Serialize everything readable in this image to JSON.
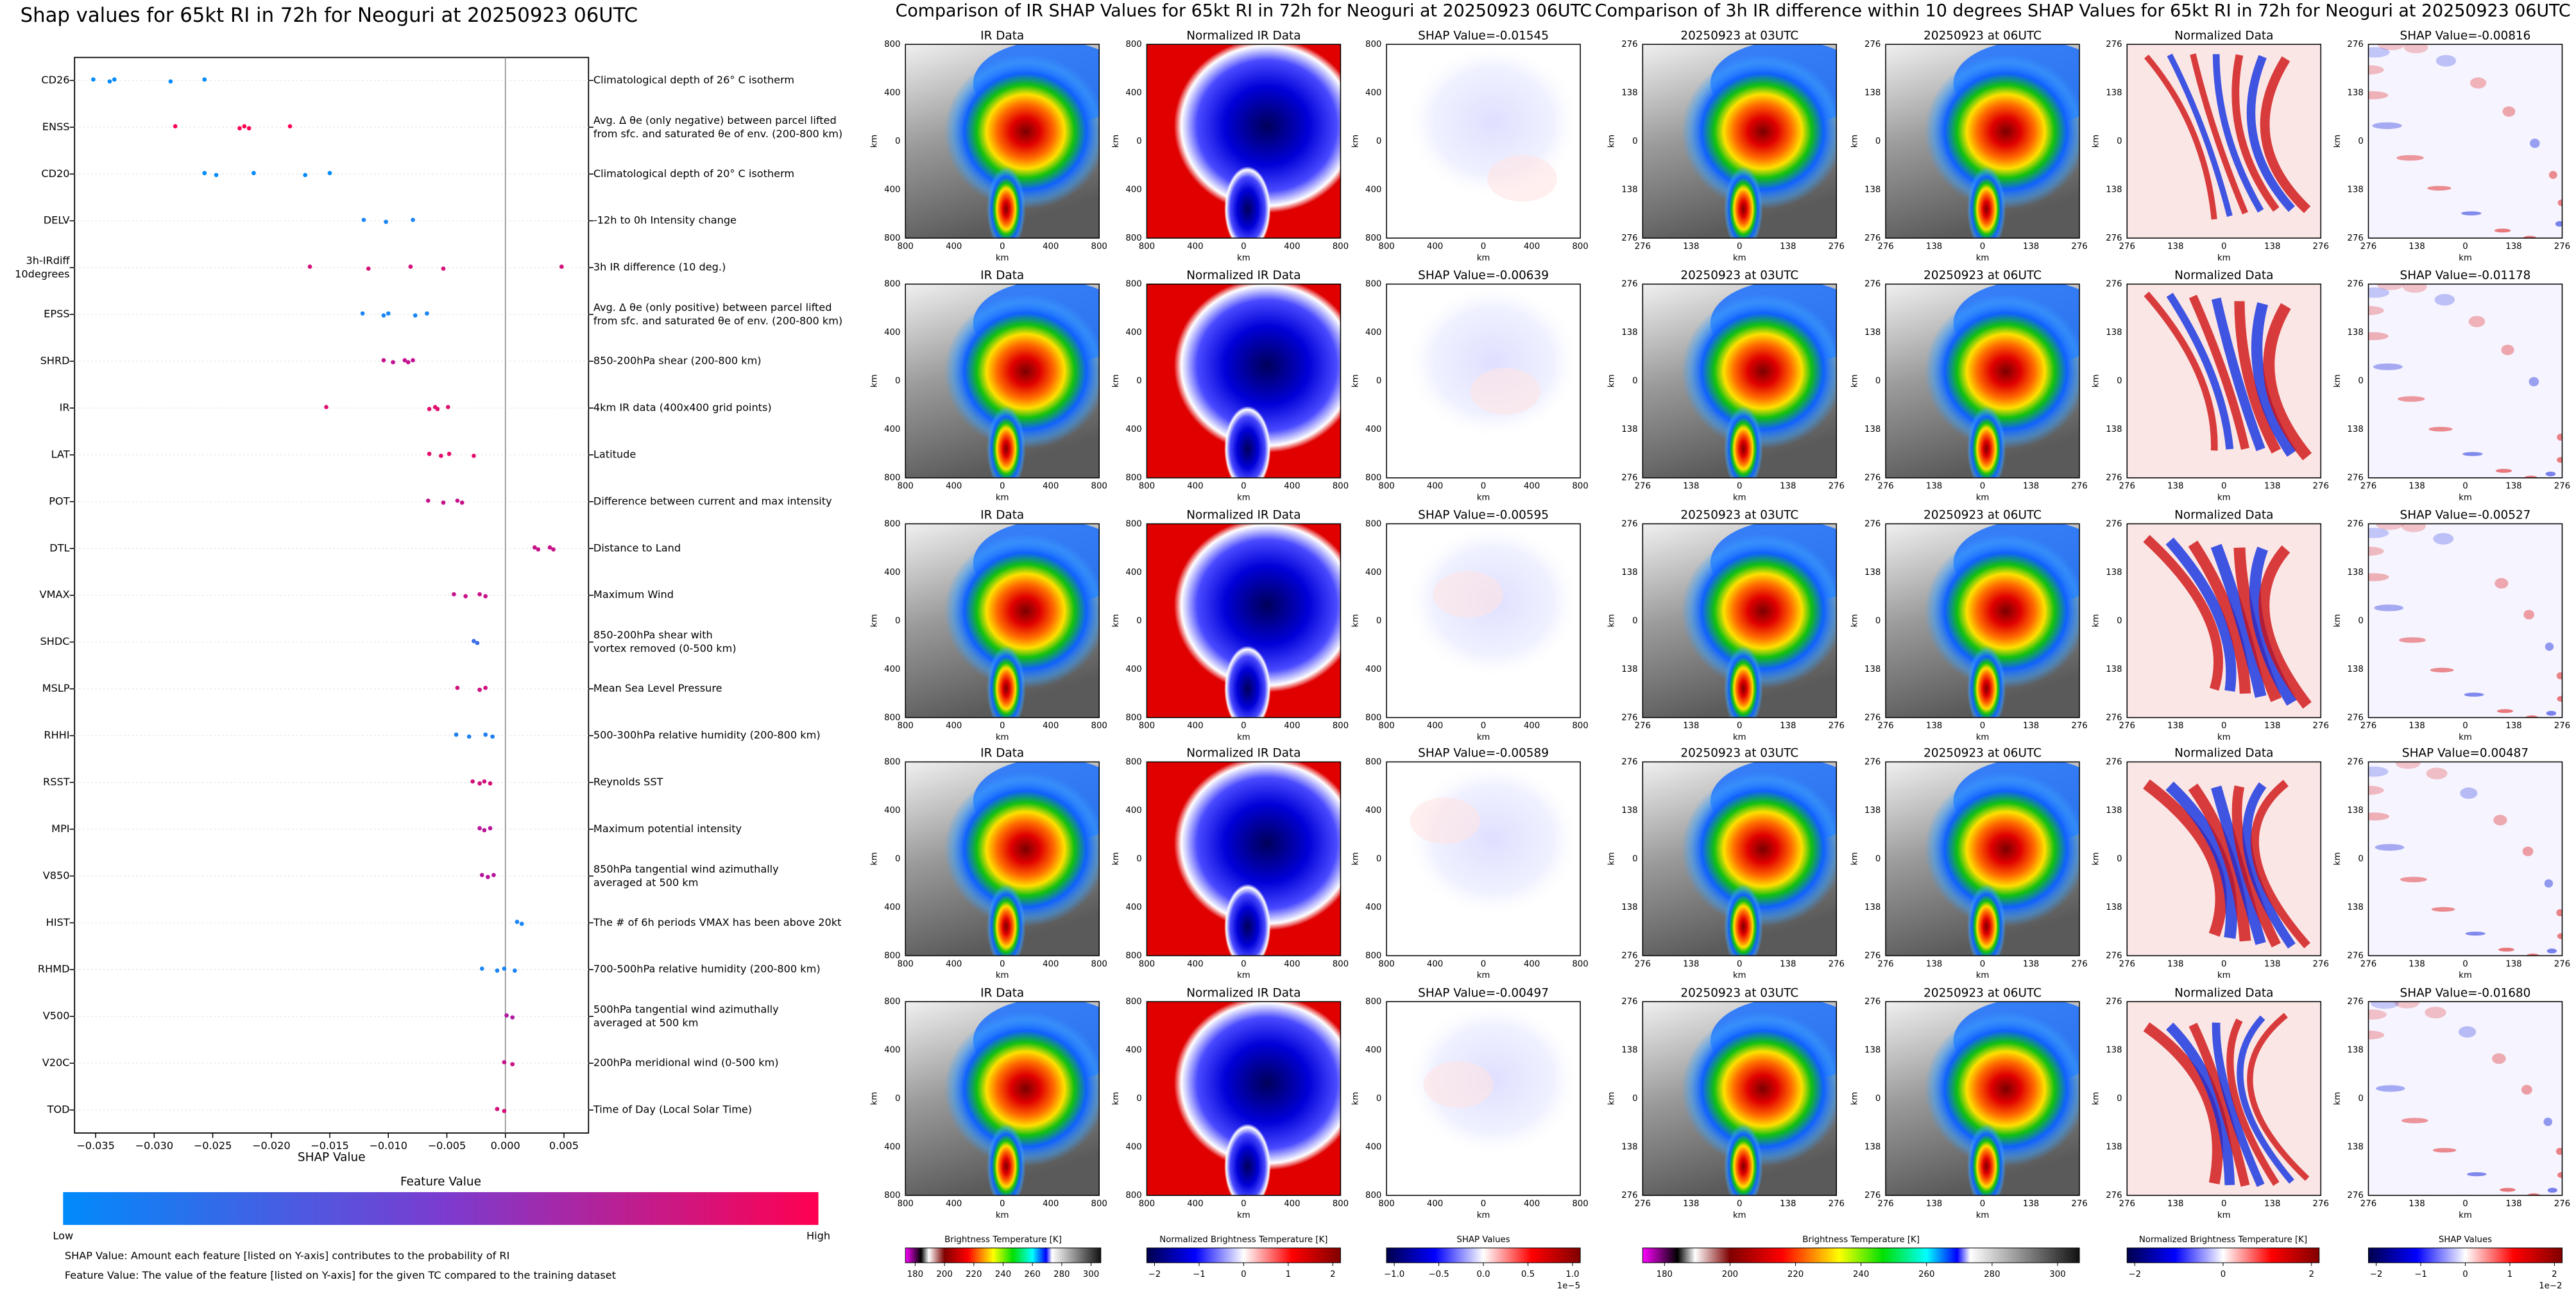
{
  "chart_data": [
    {
      "type": "scatter",
      "title": "Shap values for 65kt RI in 72h for Neoguri at 20250923 06UTC",
      "x_label": "SHAP Value",
      "xlim": [
        -0.0368,
        0.0071
      ],
      "xticks": [
        {
          "value": -0.035,
          "label": "−0.035"
        },
        {
          "value": -0.03,
          "label": "−0.030"
        },
        {
          "value": -0.025,
          "label": "−0.025"
        },
        {
          "value": -0.02,
          "label": "−0.020"
        },
        {
          "value": -0.015,
          "label": "−0.015"
        },
        {
          "value": -0.01,
          "label": "−0.010"
        },
        {
          "value": -0.005,
          "label": "−0.005"
        },
        {
          "value": 0,
          "label": "0.000"
        },
        {
          "value": 0.005,
          "label": "0.005"
        }
      ],
      "categories": [
        "CD26",
        "ENSS",
        "CD20",
        "DELV",
        "3h-IRdiff\n10degrees",
        "EPSS",
        "SHRD",
        "IR",
        "LAT",
        "POT",
        "DTL",
        "VMAX",
        "SHDC",
        "MSLP",
        "RHHI",
        "RSST",
        "MPI",
        "V850",
        "HIST",
        "RHMD",
        "V500",
        "V20C",
        "TOD"
      ],
      "descriptions": [
        "Climatological depth of 26° C isotherm",
        "Avg. Δ θe (only negative) between parcel lifted\nfrom sfc. and saturated θe of env. (200-800 km)",
        "Climatological depth of 20° C isotherm",
        "-12h to 0h Intensity change",
        "3h IR difference (10 deg.)",
        "Avg. Δ θe (only positive) between parcel lifted\nfrom sfc. and saturated θe of env. (200-800 km)",
        "850-200hPa shear (200-800 km)",
        "4km IR data (400x400 grid points)",
        "Latitude",
        "Difference between current and max intensity",
        "Distance to Land",
        "Maximum Wind",
        "850-200hPa shear with\nvortex removed (0-500 km)",
        "Mean Sea Level Pressure",
        "500-300hPa relative humidity (200-800 km)",
        "Reynolds SST",
        "Maximum potential intensity",
        "850hPa tangential wind azimuthally\naveraged at 500 km",
        "The # of 6h periods VMAX has been above 20kt",
        "700-500hPa relative humidity (200-800 km)",
        "500hPa tangential wind azimuthally\naveraged at 500 km",
        "200hPa meridional wind (0-500 km)",
        "Time of Day (Local Solar Time)"
      ],
      "points": [
        {
          "color": "#008bfb",
          "values": [
            -0.0352,
            -0.0338,
            -0.0334,
            -0.0286,
            -0.0257
          ]
        },
        {
          "color": "#ff0051",
          "values": [
            -0.0282,
            -0.0227,
            -0.0223,
            -0.0219,
            -0.0184
          ]
        },
        {
          "color": "#008bfb",
          "values": [
            -0.0257,
            -0.0247,
            -0.0215,
            -0.0171,
            -0.015
          ]
        },
        {
          "color": "#1a86f5",
          "values": [
            -0.0121,
            -0.0102,
            -0.0079
          ]
        },
        {
          "color": "#d6107a",
          "values": [
            -0.0167,
            -0.0117,
            -0.0081,
            -0.0053,
            0.0048
          ]
        },
        {
          "color": "#1a86f5",
          "values": [
            -0.0122,
            -0.0104,
            -0.01,
            -0.0077,
            -0.0067
          ]
        },
        {
          "color": "#c4118f",
          "values": [
            -0.0104,
            -0.0096,
            -0.0086,
            -0.0083,
            -0.0079
          ]
        },
        {
          "color": "#e0106e",
          "values": [
            -0.0153,
            -0.0065,
            -0.006,
            -0.0058,
            -0.0049
          ]
        },
        {
          "color": "#e40b6a",
          "values": [
            -0.0065,
            -0.0055,
            -0.0048,
            -0.0027
          ]
        },
        {
          "color": "#c6128a",
          "values": [
            -0.0066,
            -0.0053,
            -0.0041,
            -0.0037
          ]
        },
        {
          "color": "#c8128a",
          "values": [
            0.0025,
            0.0028,
            0.0038,
            0.0041
          ]
        },
        {
          "color": "#c8128a",
          "values": [
            -0.0044,
            -0.0034,
            -0.0022,
            -0.0017
          ]
        },
        {
          "color": "#3a6ee8",
          "values": [
            -0.0027,
            -0.0024
          ]
        },
        {
          "color": "#d00f80",
          "values": [
            -0.0041,
            -0.0022,
            -0.0017
          ]
        },
        {
          "color": "#1e7ff0",
          "values": [
            -0.0042,
            -0.0031,
            -0.0017,
            -0.0011
          ]
        },
        {
          "color": "#d2107c",
          "values": [
            -0.0028,
            -0.0022,
            -0.0018,
            -0.0013
          ]
        },
        {
          "color": "#b8159a",
          "values": [
            -0.0022,
            -0.0018,
            -0.0013
          ]
        },
        {
          "color": "#b8159a",
          "values": [
            -0.002,
            -0.0015,
            -0.001
          ]
        },
        {
          "color": "#1a86f5",
          "values": [
            0.001,
            0.0014
          ]
        },
        {
          "color": "#1a86f5",
          "values": [
            -0.002,
            -0.0007,
            -0.0001,
            0.0008
          ]
        },
        {
          "color": "#b01aa0",
          "values": [
            0.0001,
            0.0006
          ]
        },
        {
          "color": "#c8128a",
          "values": [
            -0.0001,
            0.0006
          ]
        },
        {
          "color": "#d6107a",
          "values": [
            -0.0007,
            -0.0001
          ]
        }
      ],
      "colorbar": {
        "label": "Feature Value",
        "low": "Low",
        "high": "High",
        "colors": [
          "#008bfb",
          "#7a3cd0",
          "#ff0051"
        ]
      },
      "notes": [
        "SHAP Value: Amount each feature [listed on Y-axis] contributes to the probability of RI",
        "Feature Value: The value of the feature [listed on Y-axis] for the given TC compared to the training dataset"
      ]
    }
  ],
  "panel_groups": [
    {
      "title": "Comparison of IR SHAP Values for 65kt RI in 72h for Neoguri at 20250923 06UTC",
      "axis_label": "km",
      "tick_labels": [
        "800",
        "400",
        "0",
        "400",
        "800"
      ],
      "row_titles": [
        [
          "IR Data",
          "Normalized IR Data",
          "SHAP Value=-0.01545"
        ],
        [
          "IR Data",
          "Normalized IR Data",
          "SHAP Value=-0.00639"
        ],
        [
          "IR Data",
          "Normalized IR Data",
          "SHAP Value=-0.00595"
        ],
        [
          "IR Data",
          "Normalized IR Data",
          "SHAP Value=-0.00589"
        ],
        [
          "IR Data",
          "Normalized IR Data",
          "SHAP Value=-0.00497"
        ]
      ]
    },
    {
      "title": "Comparison of 3h IR difference within 10 degrees SHAP Values for 65kt RI in 72h for Neoguri at 20250923 06UTC",
      "axis_label": "km",
      "tick_labels": [
        "276",
        "138",
        "0",
        "138",
        "276"
      ],
      "row_titles": [
        [
          "20250923 at 03UTC",
          "20250923 at 06UTC",
          "Normalized Data",
          "SHAP Value=-0.00816"
        ],
        [
          "20250923 at 03UTC",
          "20250923 at 06UTC",
          "Normalized Data",
          "SHAP Value=-0.01178"
        ],
        [
          "20250923 at 03UTC",
          "20250923 at 06UTC",
          "Normalized Data",
          "SHAP Value=-0.00527"
        ],
        [
          "20250923 at 03UTC",
          "20250923 at 06UTC",
          "Normalized Data",
          "SHAP Value=0.00487"
        ],
        [
          "20250923 at 03UTC",
          "20250923 at 06UTC",
          "Normalized Data",
          "SHAP Value=-0.01680"
        ]
      ]
    }
  ],
  "colorbars": [
    {
      "label": "Brightness Temperature [K]",
      "ticks": [
        "180",
        "200",
        "220",
        "240",
        "260",
        "280",
        "300"
      ]
    },
    {
      "label": "Normalized Brightness Temperature [K]",
      "ticks": [
        "−2",
        "−1",
        "0",
        "1",
        "2"
      ]
    },
    {
      "label": "SHAP Values",
      "ticks": [
        "−1.0",
        "−0.5",
        "0.0",
        "0.5",
        "1.0"
      ],
      "offset": "1e−5"
    },
    {
      "label": "Brightness Temperature [K]",
      "ticks": [
        "180",
        "200",
        "220",
        "240",
        "260",
        "280",
        "300"
      ]
    },
    {
      "label": "Normalized Brightness Temperature [K]",
      "ticks": [
        "−2",
        "0",
        "2"
      ]
    },
    {
      "label": "SHAP Values",
      "ticks": [
        "−2",
        "−1",
        "0",
        "1",
        "2"
      ],
      "offset": "1e−2"
    }
  ]
}
